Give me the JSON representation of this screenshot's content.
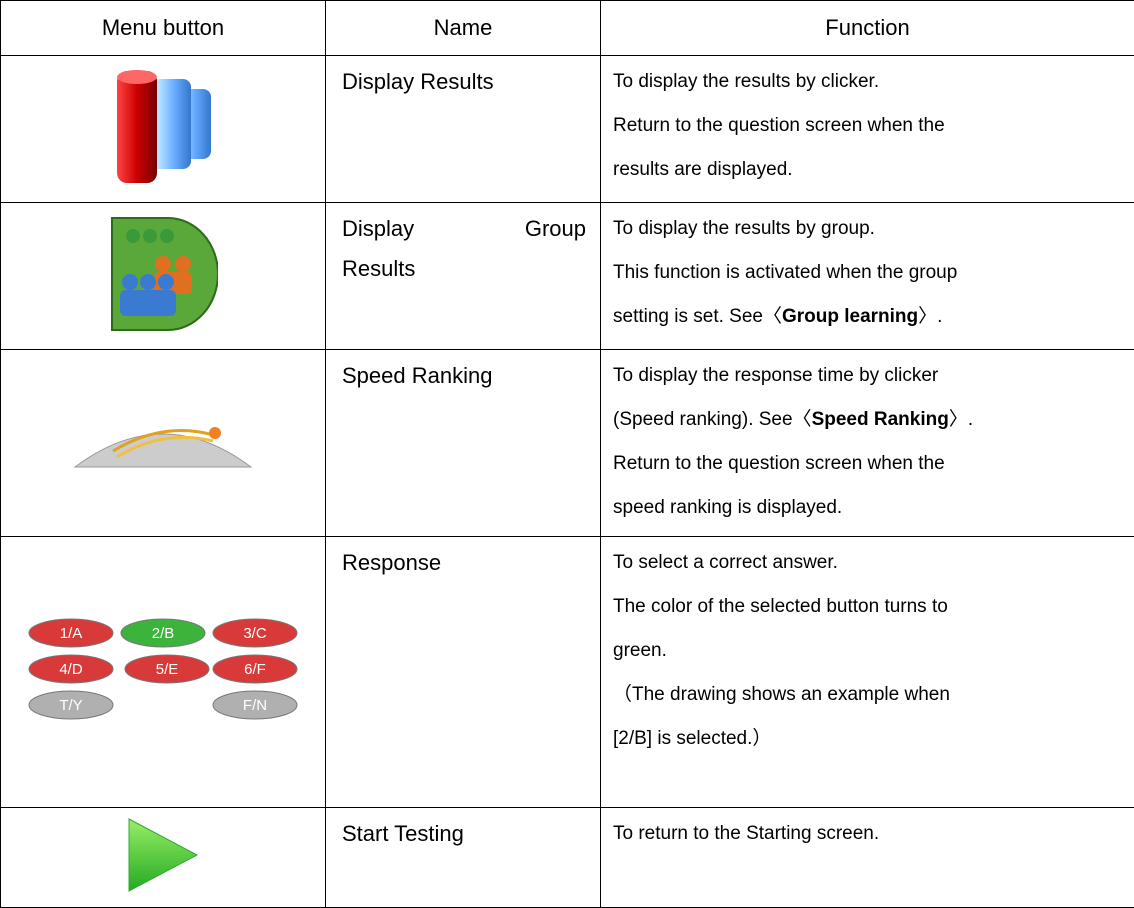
{
  "table": {
    "header": [
      "Menu button",
      "Name",
      "Function"
    ],
    "rows": [
      {
        "name": [
          "Display Results"
        ],
        "function": [
          [
            {
              "text": "To display the results by clicker."
            }
          ],
          [
            {
              "text": "Return to the question screen when the"
            }
          ],
          [
            {
              "text": "results are displayed."
            }
          ]
        ]
      },
      {
        "name": [
          "Display Group",
          "Results"
        ],
        "function": [
          [
            {
              "text": "To display the results by group."
            }
          ],
          [
            {
              "text": "This function is activated when the group"
            }
          ],
          [
            {
              "text": "setting is set. See〈"
            },
            {
              "text": "Group learning",
              "bold": true
            },
            {
              "text": "〉."
            }
          ]
        ]
      },
      {
        "name": [
          "Speed Ranking"
        ],
        "function": [
          [
            {
              "text": "To display the response time by clicker"
            }
          ],
          [
            {
              "text": "(Speed ranking). See〈"
            },
            {
              "text": "Speed Ranking",
              "bold": true
            },
            {
              "text": "〉."
            }
          ],
          [
            {
              "text": "Return to the question screen when the"
            }
          ],
          [
            {
              "text": "speed ranking is displayed."
            }
          ]
        ]
      },
      {
        "name": [
          "Response"
        ],
        "buttons": [
          {
            "label": "1/A",
            "color": "#d83a3a"
          },
          {
            "label": "2/B",
            "color": "#3cb43c"
          },
          {
            "label": "3/C",
            "color": "#d83a3a"
          },
          {
            "label": "4/D",
            "color": "#d83a3a"
          },
          {
            "label": "5/E",
            "color": "#d83a3a"
          },
          {
            "label": "6/F",
            "color": "#d83a3a"
          },
          {
            "label": "T/Y",
            "color": "#b0b0b0"
          },
          {
            "label": "F/N",
            "color": "#b0b0b0"
          }
        ],
        "function": [
          [
            {
              "text": "To select a correct answer."
            }
          ],
          [
            {
              "text": "The color of the selected button turns to"
            }
          ],
          [
            {
              "text": "green."
            }
          ],
          [
            {
              "text": "（The drawing shows an example when"
            }
          ],
          [
            {
              "text": "[2/B] is selected.）"
            }
          ]
        ]
      },
      {
        "name": [
          "Start Testing"
        ],
        "function": [
          [
            {
              "text": "To return to the Starting screen."
            }
          ]
        ]
      }
    ]
  }
}
